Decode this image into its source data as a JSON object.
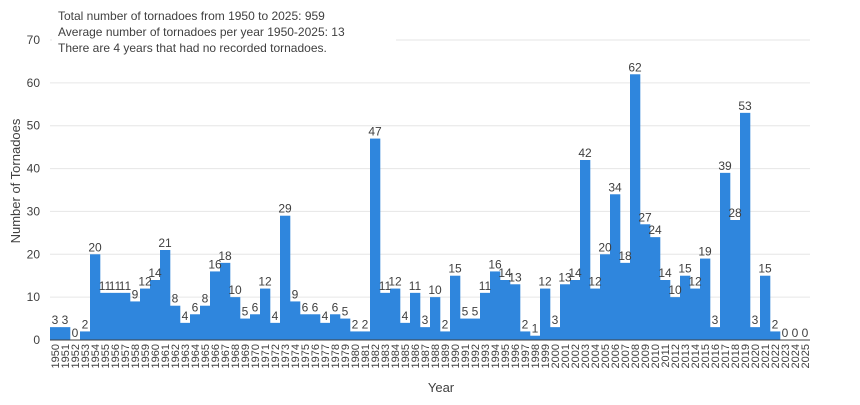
{
  "chart_data": {
    "type": "bar",
    "title": "",
    "xlabel": "Year",
    "ylabel": "Number of Tornadoes",
    "ylim": [
      0,
      70
    ],
    "y_ticks": [
      0,
      10,
      20,
      30,
      40,
      50,
      60,
      70
    ],
    "grid": true,
    "legend": "none",
    "bar_color": "#2f86dd",
    "grid_color": "#e6e6e6",
    "annotations": [
      "Total number of tornadoes from 1950 to 2025: 959",
      "Average number of tornadoes per year 1950-2025: 13",
      "There are 4 years that had no recorded tornadoes."
    ],
    "categories": [
      "1950",
      "1951",
      "1952",
      "1953",
      "1954",
      "1955",
      "1956",
      "1957",
      "1958",
      "1959",
      "1960",
      "1961",
      "1962",
      "1963",
      "1964",
      "1965",
      "1966",
      "1967",
      "1968",
      "1969",
      "1970",
      "1971",
      "1972",
      "1973",
      "1974",
      "1975",
      "1976",
      "1977",
      "1978",
      "1979",
      "1980",
      "1981",
      "1982",
      "1983",
      "1984",
      "1985",
      "1986",
      "1987",
      "1988",
      "1989",
      "1990",
      "1991",
      "1992",
      "1993",
      "1994",
      "1995",
      "1996",
      "1997",
      "1998",
      "1999",
      "2000",
      "2001",
      "2002",
      "2003",
      "2004",
      "2005",
      "2006",
      "2007",
      "2008",
      "2009",
      "2010",
      "2011",
      "2012",
      "2013",
      "2014",
      "2015",
      "2016",
      "2017",
      "2018",
      "2019",
      "2020",
      "2021",
      "2022",
      "2023",
      "2024",
      "2025"
    ],
    "values": [
      3,
      3,
      0,
      2,
      20,
      11,
      11,
      11,
      9,
      12,
      14,
      21,
      8,
      4,
      6,
      8,
      16,
      18,
      10,
      5,
      6,
      12,
      4,
      29,
      9,
      6,
      6,
      4,
      6,
      5,
      2,
      2,
      47,
      11,
      12,
      4,
      11,
      3,
      10,
      2,
      15,
      5,
      5,
      11,
      16,
      14,
      13,
      2,
      1,
      12,
      3,
      13,
      14,
      42,
      12,
      20,
      34,
      18,
      62,
      27,
      24,
      14,
      10,
      15,
      12,
      19,
      3,
      39,
      28,
      53,
      3,
      15,
      2,
      0,
      0,
      0
    ]
  }
}
